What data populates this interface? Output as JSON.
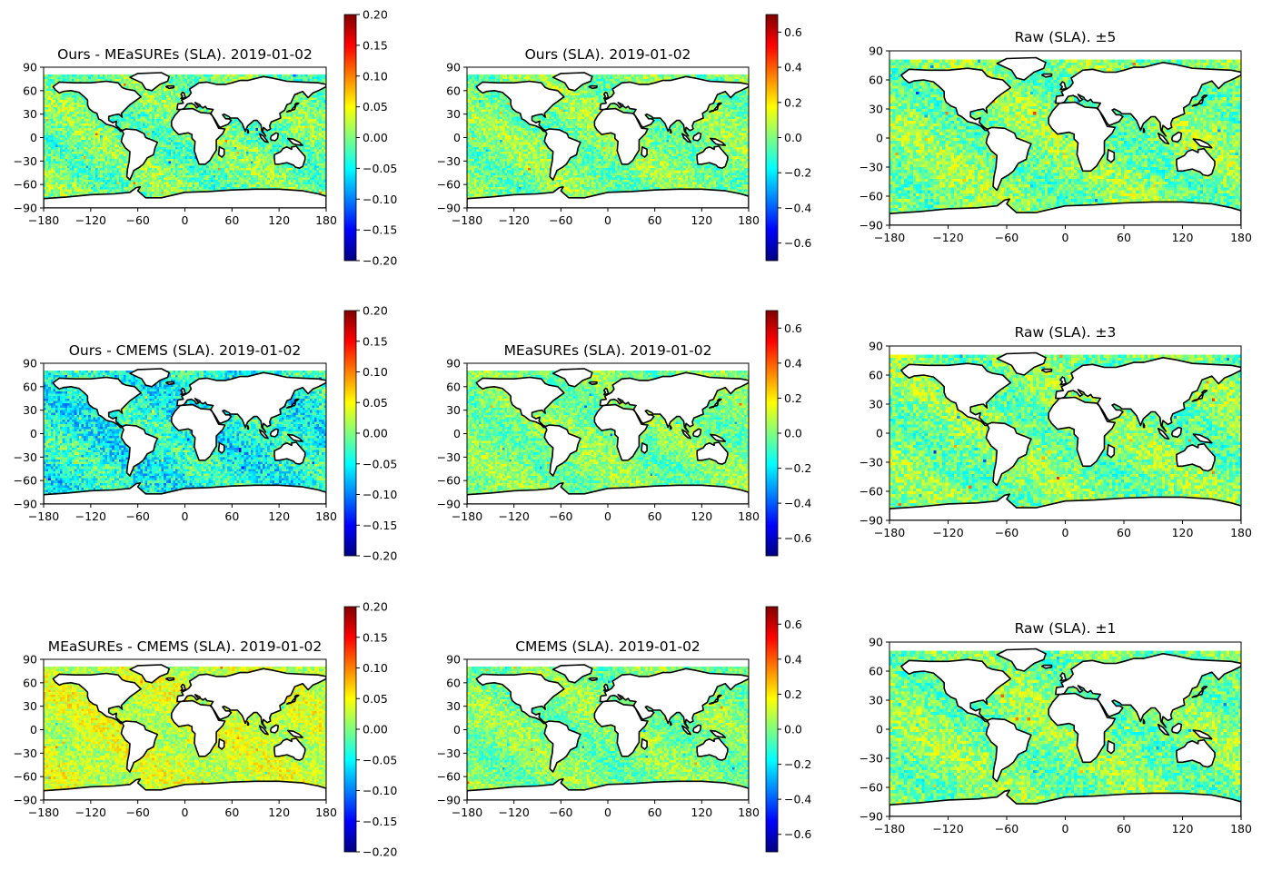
{
  "chart_data": [
    {
      "type": "heatmap",
      "title": "Ours - MEaSUREs (SLA). 2019-01-02",
      "xlim": [
        -180,
        180
      ],
      "ylim": [
        -90,
        90
      ],
      "xticks": [
        "−180",
        "−120",
        "−60",
        "0",
        "60",
        "120",
        "180"
      ],
      "yticks": [
        "90",
        "60",
        "30",
        "0",
        "−30",
        "−60",
        "−90"
      ],
      "colormap": "jet",
      "clim": [
        -0.2,
        0.2
      ],
      "colorbar_ticks": [
        "0.20",
        "0.15",
        "0.10",
        "0.05",
        "0.00",
        "−0.05",
        "−0.10",
        "−0.15",
        "−0.20"
      ],
      "field_mean": -0.005,
      "field_spread": 0.045
    },
    {
      "type": "heatmap",
      "title": "Ours (SLA). 2019-01-02",
      "xlim": [
        -180,
        180
      ],
      "ylim": [
        -90,
        90
      ],
      "xticks": [
        "−180",
        "−120",
        "−60",
        "0",
        "60",
        "120",
        "180"
      ],
      "yticks": [
        "90",
        "60",
        "30",
        "0",
        "−30",
        "−60",
        "−90"
      ],
      "colormap": "jet",
      "clim": [
        -0.7,
        0.7
      ],
      "colorbar_ticks": [
        "0.6",
        "0.4",
        "0.2",
        "0.0",
        "−0.2",
        "−0.4",
        "−0.6"
      ],
      "field_mean": 0.0,
      "field_spread": 0.14
    },
    {
      "type": "heatmap",
      "title": "Raw (SLA). ±5",
      "xlim": [
        -180,
        180
      ],
      "ylim": [
        -90,
        90
      ],
      "xticks": [
        "−180",
        "−120",
        "−60",
        "0",
        "60",
        "120",
        "180"
      ],
      "yticks": [
        "90",
        "60",
        "30",
        "0",
        "−30",
        "−60",
        "−90"
      ],
      "colormap": "jet",
      "clim": [
        -0.7,
        0.7
      ],
      "field_mean": 0.0,
      "field_spread": 0.15
    },
    {
      "type": "heatmap",
      "title": "Ours - CMEMS (SLA). 2019-01-02",
      "xlim": [
        -180,
        180
      ],
      "ylim": [
        -90,
        90
      ],
      "xticks": [
        "−180",
        "−120",
        "−60",
        "0",
        "60",
        "120",
        "180"
      ],
      "yticks": [
        "90",
        "60",
        "30",
        "0",
        "−30",
        "−60",
        "−90"
      ],
      "colormap": "jet",
      "clim": [
        -0.2,
        0.2
      ],
      "colorbar_ticks": [
        "0.20",
        "0.15",
        "0.10",
        "0.05",
        "0.00",
        "−0.05",
        "−0.10",
        "−0.15",
        "−0.20"
      ],
      "field_mean": -0.04,
      "field_spread": 0.05
    },
    {
      "type": "heatmap",
      "title": "MEaSUREs (SLA). 2019-01-02",
      "xlim": [
        -180,
        180
      ],
      "ylim": [
        -90,
        90
      ],
      "xticks": [
        "−180",
        "−120",
        "−60",
        "0",
        "60",
        "120",
        "180"
      ],
      "yticks": [
        "90",
        "60",
        "30",
        "0",
        "−30",
        "−60",
        "−90"
      ],
      "colormap": "jet",
      "clim": [
        -0.7,
        0.7
      ],
      "colorbar_ticks": [
        "0.6",
        "0.4",
        "0.2",
        "0.0",
        "−0.2",
        "−0.4",
        "−0.6"
      ],
      "field_mean": 0.0,
      "field_spread": 0.13
    },
    {
      "type": "heatmap",
      "title": "Raw (SLA). ±3",
      "xlim": [
        -180,
        180
      ],
      "ylim": [
        -90,
        90
      ],
      "xticks": [
        "−180",
        "−120",
        "−60",
        "0",
        "60",
        "120",
        "180"
      ],
      "yticks": [
        "90",
        "60",
        "30",
        "0",
        "−30",
        "−60",
        "−90"
      ],
      "colormap": "jet",
      "clim": [
        -0.7,
        0.7
      ],
      "field_mean": 0.0,
      "field_spread": 0.15
    },
    {
      "type": "heatmap",
      "title": "MEaSUREs - CMEMS (SLA). 2019-01-02",
      "xlim": [
        -180,
        180
      ],
      "ylim": [
        -90,
        90
      ],
      "xticks": [
        "−180",
        "−120",
        "−60",
        "0",
        "60",
        "120",
        "180"
      ],
      "yticks": [
        "90",
        "60",
        "30",
        "0",
        "−30",
        "−60",
        "−90"
      ],
      "colormap": "jet",
      "clim": [
        -0.2,
        0.2
      ],
      "colorbar_ticks": [
        "0.20",
        "0.15",
        "0.10",
        "0.05",
        "0.00",
        "−0.05",
        "−0.10",
        "−0.15",
        "−0.20"
      ],
      "field_mean": 0.03,
      "field_spread": 0.035
    },
    {
      "type": "heatmap",
      "title": "CMEMS (SLA). 2019-01-02",
      "xlim": [
        -180,
        180
      ],
      "ylim": [
        -90,
        90
      ],
      "xticks": [
        "−180",
        "−120",
        "−60",
        "0",
        "60",
        "120",
        "180"
      ],
      "yticks": [
        "90",
        "60",
        "30",
        "0",
        "−30",
        "−60",
        "−90"
      ],
      "colormap": "jet",
      "clim": [
        -0.7,
        0.7
      ],
      "colorbar_ticks": [
        "0.6",
        "0.4",
        "0.2",
        "0.0",
        "−0.2",
        "−0.4",
        "−0.6"
      ],
      "field_mean": 0.0,
      "field_spread": 0.13
    },
    {
      "type": "heatmap",
      "title": "Raw (SLA). ±1",
      "xlim": [
        -180,
        180
      ],
      "ylim": [
        -90,
        90
      ],
      "xticks": [
        "−180",
        "−120",
        "−60",
        "0",
        "60",
        "120",
        "180"
      ],
      "yticks": [
        "90",
        "60",
        "30",
        "0",
        "−30",
        "−60",
        "−90"
      ],
      "colormap": "jet",
      "clim": [
        -0.7,
        0.7
      ],
      "field_mean": 0.0,
      "field_spread": 0.15
    }
  ]
}
